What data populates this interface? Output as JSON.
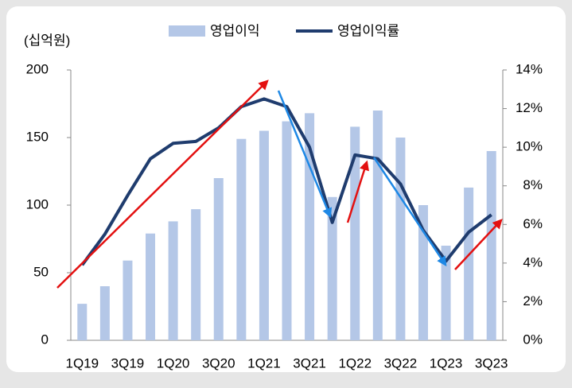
{
  "chart_data": {
    "type": "bar_line",
    "ylabel": "(십억원)",
    "categories": [
      "1Q19",
      null,
      "3Q19",
      null,
      "1Q20",
      null,
      "3Q20",
      null,
      "1Q21",
      null,
      "3Q21",
      null,
      "1Q22",
      null,
      "3Q22",
      null,
      "1Q23",
      null,
      "3Q23"
    ],
    "series": [
      {
        "name": "영업이익",
        "type": "bar",
        "color": "#b4c7e7",
        "values": [
          27,
          40,
          59,
          79,
          88,
          97,
          120,
          149,
          155,
          162,
          168,
          106,
          158,
          170,
          150,
          100,
          70,
          113,
          140
        ]
      },
      {
        "name": "영업이익률",
        "type": "line",
        "axis": "y2",
        "color": "#1f3c6e",
        "values": [
          3.9,
          5.5,
          7.5,
          9.4,
          10.2,
          10.3,
          11.0,
          12.1,
          12.5,
          12.1,
          10.0,
          6.1,
          9.6,
          9.4,
          8.1,
          5.7,
          4.1,
          5.6,
          6.5
        ]
      }
    ],
    "ylim": [
      0,
      200
    ],
    "yticks": [
      0,
      50,
      100,
      150,
      200
    ],
    "y2lim": [
      0,
      14
    ],
    "y2ticks": [
      {
        "value": 0,
        "label": "0%"
      },
      {
        "value": 2,
        "label": "2%"
      },
      {
        "value": 4,
        "label": "4%"
      },
      {
        "value": 6,
        "label": "6%"
      },
      {
        "value": 8,
        "label": "8%"
      },
      {
        "value": 10,
        "label": "10%"
      },
      {
        "value": 12,
        "label": "12%"
      },
      {
        "value": 14,
        "label": "14%"
      }
    ],
    "legend": "top"
  }
}
